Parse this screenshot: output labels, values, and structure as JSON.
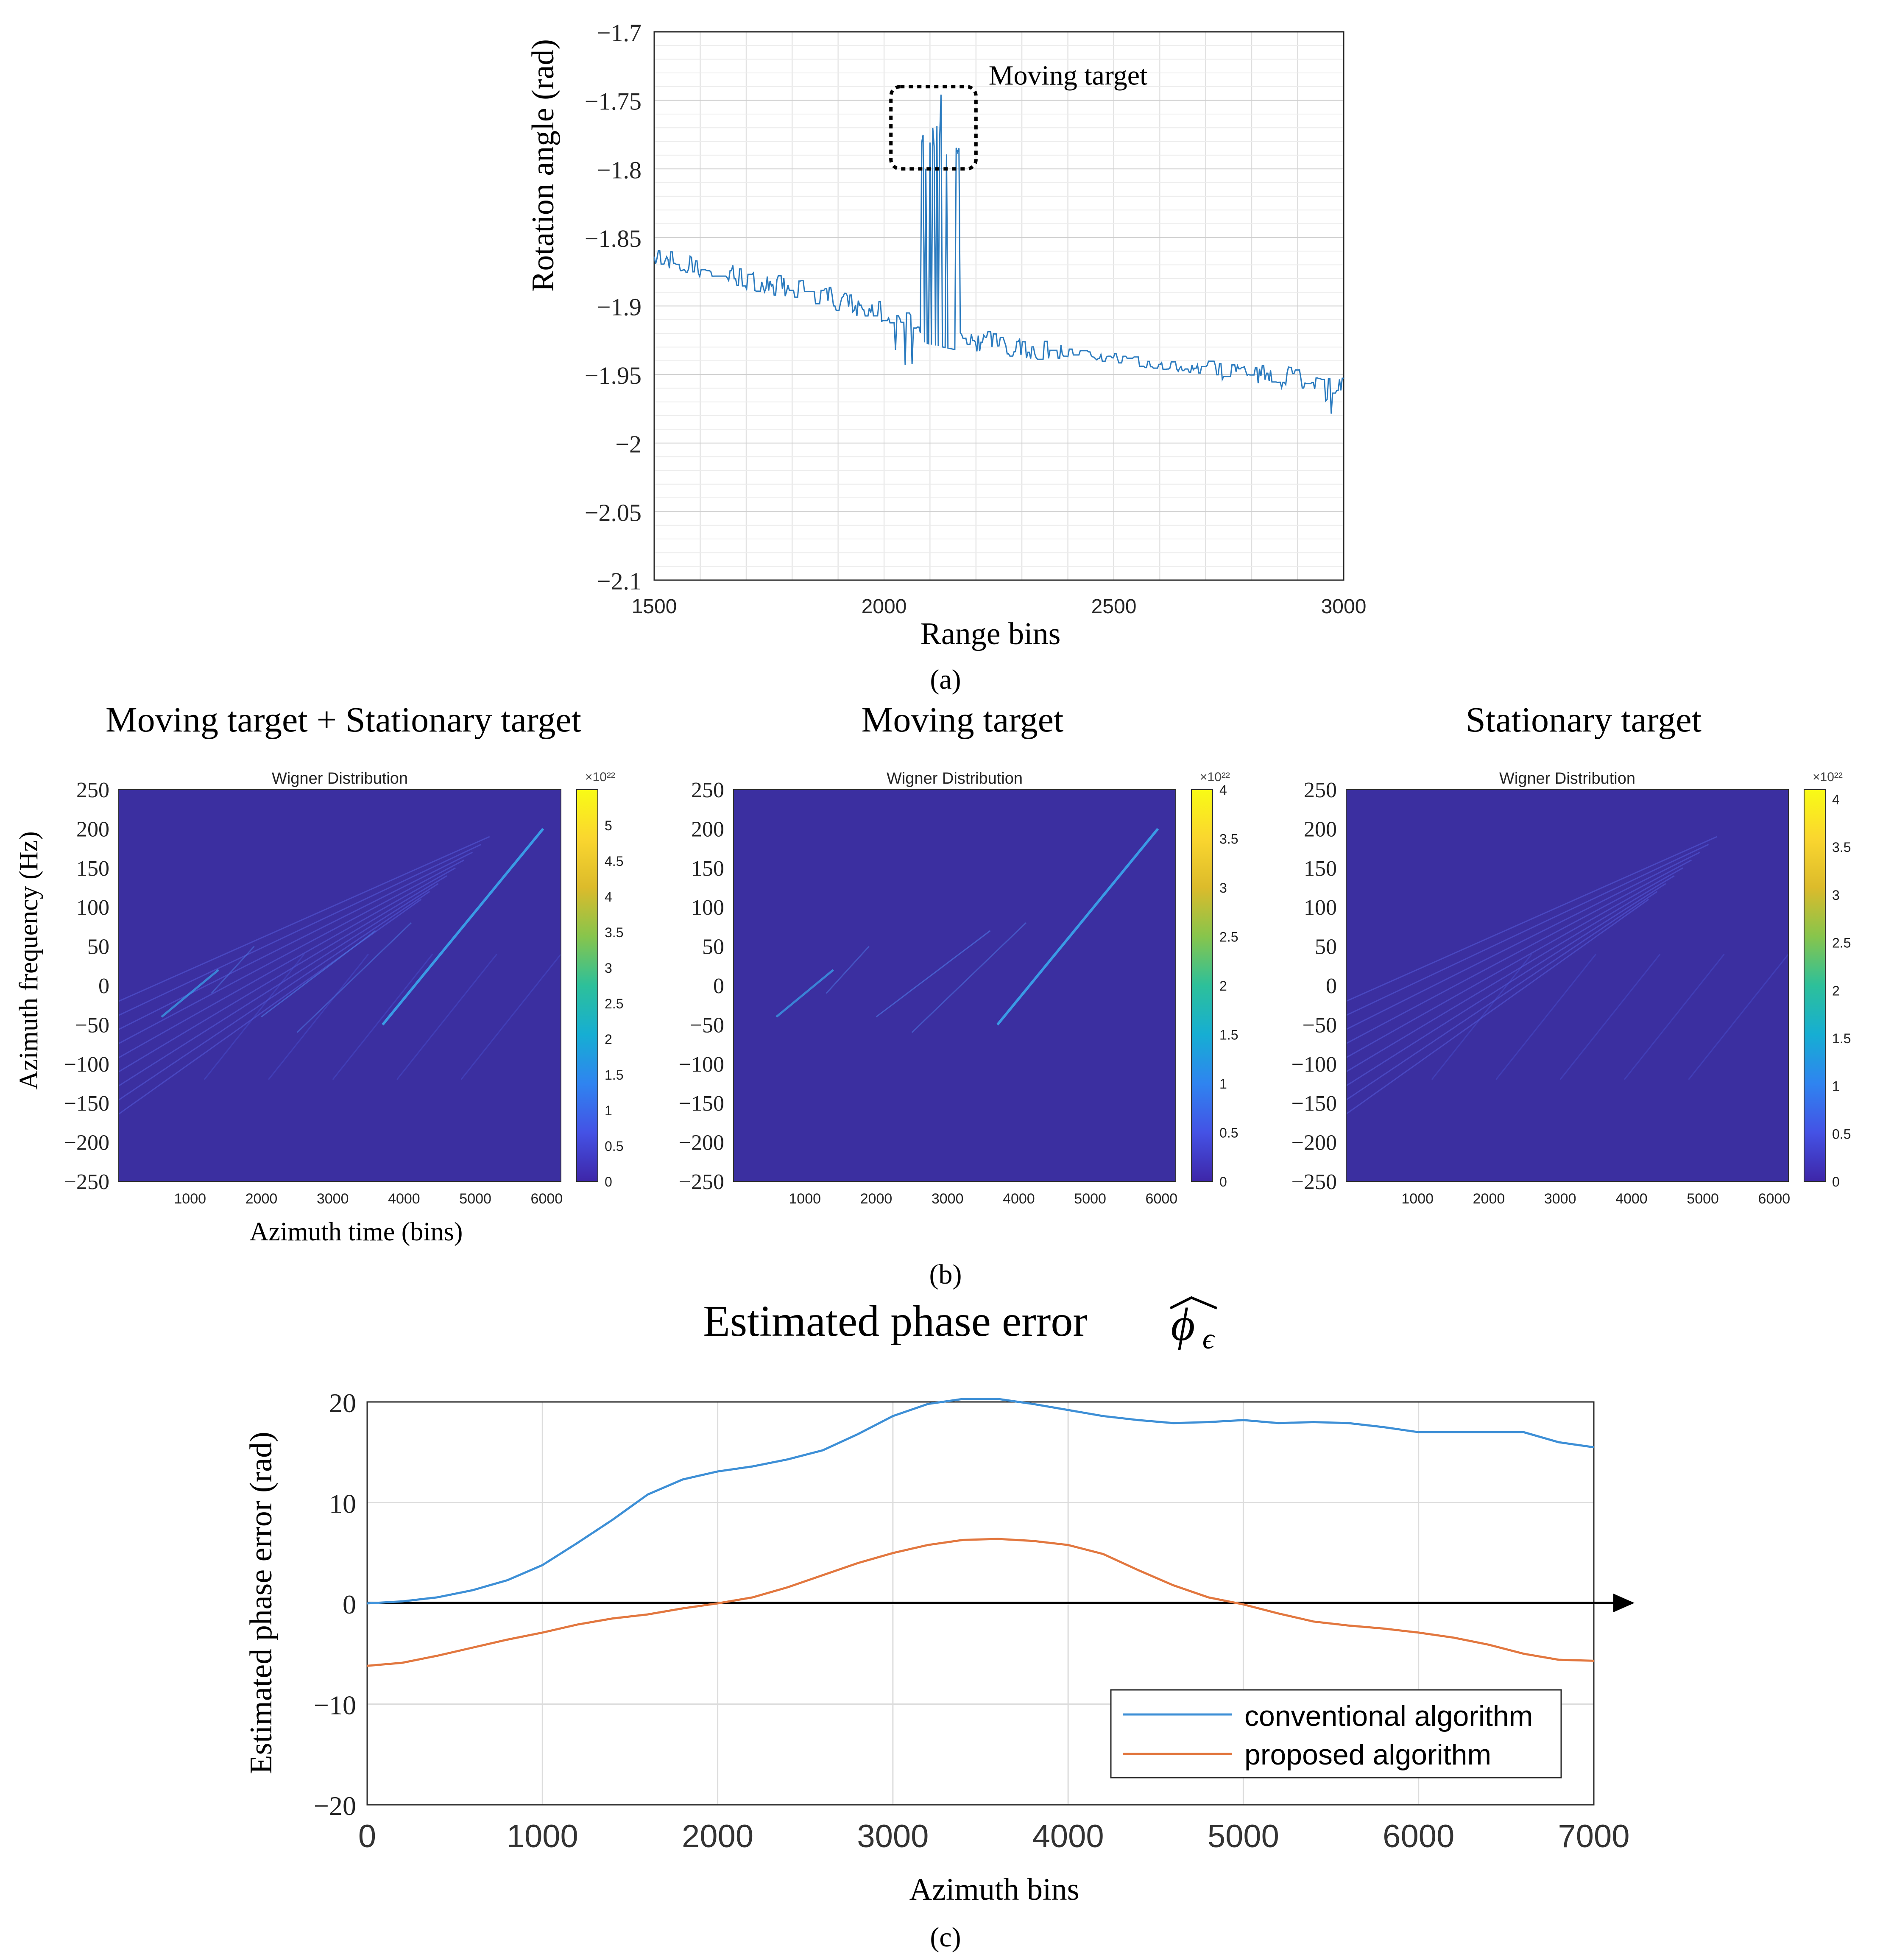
{
  "chart_data": [
    {
      "id": "a",
      "type": "line",
      "caption": "(a)",
      "xlabel": "Range bins",
      "ylabel": "Rotation angle (rad)",
      "xlim": [
        1500,
        3000
      ],
      "ylim": [
        -2.1,
        -1.7
      ],
      "xticks": [
        1500,
        2000,
        2500,
        3000
      ],
      "xtick_labels": [
        "1500",
        "2000",
        "2500",
        "3000"
      ],
      "yticks": [
        -2.1,
        -2.05,
        -2,
        -1.95,
        -1.9,
        -1.85,
        -1.8,
        -1.75,
        -1.7
      ],
      "ytick_labels": [
        "−2.1",
        "−2.05",
        "−2",
        "−1.95",
        "−1.9",
        "−1.85",
        "−1.8",
        "−1.75",
        "−1.7"
      ],
      "grid": true,
      "series_color": "#2b7bbf",
      "annotation": {
        "text": "Moving target",
        "box_x": [
          2015,
          2200
        ],
        "box_y": [
          -1.8,
          -1.74
        ]
      },
      "trend": [
        [
          1500,
          -1.865
        ],
        [
          1600,
          -1.872
        ],
        [
          1700,
          -1.88
        ],
        [
          1800,
          -1.887
        ],
        [
          1900,
          -1.896
        ],
        [
          2000,
          -1.905
        ],
        [
          2050,
          -1.912
        ],
        [
          2100,
          -1.918
        ],
        [
          2200,
          -1.925
        ],
        [
          2300,
          -1.93
        ],
        [
          2400,
          -1.934
        ],
        [
          2500,
          -1.938
        ],
        [
          2600,
          -1.943
        ],
        [
          2700,
          -1.947
        ],
        [
          2800,
          -1.95
        ],
        [
          2900,
          -1.953
        ],
        [
          3000,
          -1.958
        ]
      ],
      "spikes": [
        [
          2085,
          -1.78
        ],
        [
          2095,
          -1.75
        ],
        [
          2100,
          -1.78
        ],
        [
          2110,
          -1.76
        ],
        [
          2118,
          -1.79
        ],
        [
          2125,
          -1.775
        ],
        [
          2132,
          -1.755
        ],
        [
          2140,
          -1.78
        ],
        [
          2148,
          -1.785
        ],
        [
          2160,
          -1.775
        ]
      ]
    },
    {
      "id": "b1",
      "type": "heatmap",
      "heading": "Moving target + Stationary target",
      "title": "Wigner Distribution",
      "xlabel": "Azimuth time (bins)",
      "ylabel": "Azimuth frequency (Hz)",
      "xlim": [
        0,
        6200
      ],
      "ylim": [
        -250,
        250
      ],
      "xticks": [
        1000,
        2000,
        3000,
        4000,
        5000,
        6000
      ],
      "yticks": [
        -250,
        -200,
        -150,
        -100,
        -50,
        0,
        50,
        100,
        150,
        200,
        250
      ],
      "colorbar_exponent": "×10²²",
      "colorbar_max": 5.5,
      "colorbar_ticks": [
        0,
        0.5,
        1,
        1.5,
        2,
        2.5,
        3,
        3.5,
        4,
        4.5,
        5
      ],
      "background_color": "#3b2fa0"
    },
    {
      "id": "b2",
      "type": "heatmap",
      "heading": "Moving target",
      "title": "Wigner Distribution",
      "xlim": [
        0,
        6200
      ],
      "ylim": [
        -250,
        250
      ],
      "xticks": [
        1000,
        2000,
        3000,
        4000,
        5000,
        6000
      ],
      "yticks": [
        -250,
        -200,
        -150,
        -100,
        -50,
        0,
        50,
        100,
        150,
        200,
        250
      ],
      "colorbar_exponent": "×10²²",
      "colorbar_max": 4,
      "colorbar_ticks": [
        0,
        0.5,
        1,
        1.5,
        2,
        2.5,
        3,
        3.5,
        4
      ],
      "background_color": "#3b2fa0"
    },
    {
      "id": "b3",
      "type": "heatmap",
      "heading": "Stationary target",
      "title": "Wigner Distribution",
      "xlim": [
        0,
        6200
      ],
      "ylim": [
        -250,
        250
      ],
      "xticks": [
        1000,
        2000,
        3000,
        4000,
        5000,
        6000
      ],
      "yticks": [
        -250,
        -200,
        -150,
        -100,
        -50,
        0,
        50,
        100,
        150,
        200,
        250
      ],
      "colorbar_exponent": "×10²²",
      "colorbar_max": 4.1,
      "colorbar_ticks": [
        0,
        0.5,
        1,
        1.5,
        2,
        2.5,
        3,
        3.5,
        4
      ],
      "background_color": "#3b2fa0"
    },
    {
      "id": "c",
      "type": "line",
      "caption": "(c)",
      "title": "Estimated phase error",
      "xlabel": "Azimuth bins",
      "ylabel": "Estimated phase error (rad)",
      "xlim": [
        0,
        7000
      ],
      "ylim": [
        -20,
        20
      ],
      "xticks": [
        0,
        1000,
        2000,
        3000,
        4000,
        5000,
        6000,
        7000
      ],
      "yticks": [
        -20,
        -10,
        0,
        10,
        20
      ],
      "grid": true,
      "legend_position": "bottom-right",
      "series": [
        {
          "name": "conventional algorithm",
          "color": "#3d8fd6",
          "points": [
            [
              0,
              0
            ],
            [
              200,
              0.2
            ],
            [
              400,
              0.6
            ],
            [
              600,
              1.3
            ],
            [
              800,
              2.3
            ],
            [
              1000,
              3.8
            ],
            [
              1200,
              6.0
            ],
            [
              1400,
              8.3
            ],
            [
              1600,
              10.8
            ],
            [
              1800,
              12.3
            ],
            [
              2000,
              13.1
            ],
            [
              2200,
              13.6
            ],
            [
              2400,
              14.3
            ],
            [
              2600,
              15.2
            ],
            [
              2800,
              16.8
            ],
            [
              3000,
              18.6
            ],
            [
              3200,
              19.8
            ],
            [
              3400,
              20.3
            ],
            [
              3600,
              20.3
            ],
            [
              3800,
              19.8
            ],
            [
              4000,
              19.2
            ],
            [
              4200,
              18.6
            ],
            [
              4400,
              18.2
            ],
            [
              4600,
              17.9
            ],
            [
              4800,
              18.0
            ],
            [
              5000,
              18.2
            ],
            [
              5200,
              17.9
            ],
            [
              5400,
              18.0
            ],
            [
              5600,
              17.9
            ],
            [
              5800,
              17.5
            ],
            [
              6000,
              17.0
            ],
            [
              6200,
              17.0
            ],
            [
              6400,
              17.0
            ],
            [
              6600,
              17.0
            ],
            [
              6800,
              16.0
            ],
            [
              7000,
              15.5
            ]
          ]
        },
        {
          "name": "proposed algorithm",
          "color": "#e2773f",
          "points": [
            [
              0,
              -6.2
            ],
            [
              200,
              -5.9
            ],
            [
              400,
              -5.2
            ],
            [
              600,
              -4.4
            ],
            [
              800,
              -3.6
            ],
            [
              1000,
              -2.9
            ],
            [
              1200,
              -2.1
            ],
            [
              1400,
              -1.5
            ],
            [
              1600,
              -1.1
            ],
            [
              1800,
              -0.5
            ],
            [
              2000,
              0
            ],
            [
              2200,
              0.6
            ],
            [
              2400,
              1.6
            ],
            [
              2600,
              2.8
            ],
            [
              2800,
              4.0
            ],
            [
              3000,
              5.0
            ],
            [
              3200,
              5.8
            ],
            [
              3400,
              6.3
            ],
            [
              3600,
              6.4
            ],
            [
              3800,
              6.2
            ],
            [
              4000,
              5.8
            ],
            [
              4200,
              4.9
            ],
            [
              4400,
              3.3
            ],
            [
              4600,
              1.8
            ],
            [
              4800,
              0.6
            ],
            [
              5000,
              -0.1
            ],
            [
              5200,
              -1.0
            ],
            [
              5400,
              -1.8
            ],
            [
              5600,
              -2.2
            ],
            [
              5800,
              -2.5
            ],
            [
              6000,
              -2.9
            ],
            [
              6200,
              -3.4
            ],
            [
              6400,
              -4.1
            ],
            [
              6600,
              -5.0
            ],
            [
              6800,
              -5.6
            ],
            [
              7000,
              -5.7
            ]
          ]
        }
      ]
    }
  ],
  "captions": {
    "a": "(a)",
    "b": "(b)",
    "c": "(c)"
  }
}
